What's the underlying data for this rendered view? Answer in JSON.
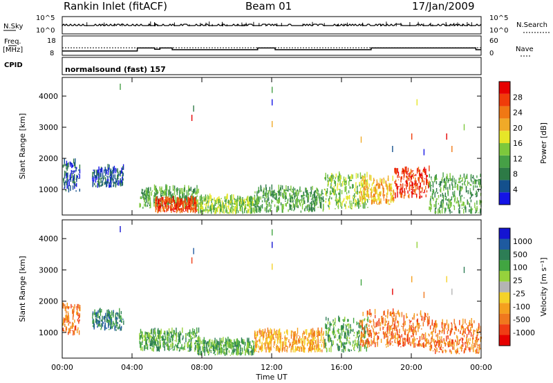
{
  "header": {
    "station": "Rankin Inlet (fitACF)",
    "beam": "Beam 01",
    "date": "17/Jan/2009"
  },
  "panels": {
    "nsky_label": "N.Sky",
    "nsky_ticks": [
      "10^5",
      "10^0"
    ],
    "nsearch_label": "N.Search",
    "nsearch_ticks": [
      "10^5",
      "10^0"
    ],
    "freq_label": "Freq.",
    "freq_unit": "[MHz]",
    "freq_ticks": [
      "18",
      "8"
    ],
    "nave_label": "Nave",
    "nave_ticks": [
      "60",
      "0"
    ],
    "cpid_label": "CPID",
    "cpid_text": "normalsound (fast) 157"
  },
  "colors": {
    "power": [
      "#1414e6",
      "#14508c",
      "#2d7a46",
      "#46a046",
      "#7dc83c",
      "#e6e628",
      "#f0aa28",
      "#f07814",
      "#f03c0a",
      "#e60000"
    ],
    "velocity": [
      "#1414d2",
      "#1e5aa0",
      "#2d7d55",
      "#41a541",
      "#96d23c",
      "#b4b4b4",
      "#f5d228",
      "#f5a01e",
      "#f0781e",
      "#f03c14",
      "#e60000"
    ]
  },
  "chart_data": [
    {
      "type": "line",
      "name": "N.Sky / N.Search",
      "x_range_hours": [
        0,
        24
      ],
      "y_scale": "log",
      "y_ticks": [
        "10^0",
        "10^5"
      ]
    },
    {
      "type": "line",
      "name": "Frequency / Nave",
      "y_range_mhz": [
        8,
        18
      ],
      "nave_range": [
        0,
        60
      ],
      "freq_steps_mhz": [
        {
          "start": 0.0,
          "end": 4.3,
          "value": 10.2
        },
        {
          "start": 4.3,
          "end": 5.3,
          "value": 11.8
        },
        {
          "start": 5.3,
          "end": 5.6,
          "value": 11.1
        },
        {
          "start": 5.6,
          "end": 6.3,
          "value": 11.8
        },
        {
          "start": 6.3,
          "end": 11.2,
          "value": 10.9
        },
        {
          "start": 11.2,
          "end": 12.2,
          "value": 11.8
        },
        {
          "start": 12.2,
          "end": 17.7,
          "value": 10.9
        },
        {
          "start": 17.7,
          "end": 23.7,
          "value": 11.8
        },
        {
          "start": 23.7,
          "end": 24.0,
          "value": 10.9
        }
      ],
      "nave_reference": 11.9
    },
    {
      "type": "heatmap",
      "name": "Power",
      "xlabel": "",
      "ylabel": "Slant Range [km]",
      "ylim": [
        180,
        4600
      ],
      "y_ticks": [
        1000,
        2000,
        3000,
        4000
      ],
      "x_ticks": [
        "00:00",
        "04:00",
        "08:00",
        "12:00",
        "16:00",
        "20:00",
        "00:00"
      ],
      "x_range_hours": [
        0,
        24
      ],
      "colorbar_label": "Power [dB]",
      "colorbar_ticks": [
        4,
        8,
        12,
        16,
        20,
        24,
        28
      ],
      "colorbar_range": [
        0,
        30
      ],
      "regions": [
        {
          "t0": 0.0,
          "t1": 1.0,
          "r0": 900,
          "r1": 1850,
          "c": 1
        },
        {
          "t0": 1.7,
          "t1": 3.5,
          "r0": 1050,
          "r1": 1650,
          "c": 1
        },
        {
          "t0": 4.4,
          "t1": 7.8,
          "r0": 380,
          "r1": 1000,
          "c": 3
        },
        {
          "t0": 5.3,
          "t1": 7.7,
          "r0": 230,
          "r1": 650,
          "c": 8
        },
        {
          "t0": 7.7,
          "t1": 11.0,
          "r0": 200,
          "r1": 700,
          "c": 4
        },
        {
          "t0": 11.0,
          "t1": 15.0,
          "r0": 250,
          "r1": 1000,
          "c": 3
        },
        {
          "t0": 15.0,
          "t1": 17.5,
          "r0": 350,
          "r1": 1400,
          "c": 4
        },
        {
          "t0": 17.0,
          "t1": 19.0,
          "r0": 500,
          "r1": 1300,
          "c": 6
        },
        {
          "t0": 19.0,
          "t1": 21.0,
          "r0": 700,
          "r1": 1600,
          "c": 8
        },
        {
          "t0": 21.0,
          "t1": 24.0,
          "r0": 200,
          "r1": 1400,
          "c": 3
        }
      ]
    },
    {
      "type": "heatmap",
      "name": "Velocity",
      "xlabel": "Time UT",
      "ylabel": "Slant Range [km]",
      "ylim": [
        180,
        4600
      ],
      "y_ticks": [
        1000,
        2000,
        3000,
        4000
      ],
      "x_ticks": [
        "00:00",
        "04:00",
        "08:00",
        "12:00",
        "16:00",
        "20:00",
        "00:00"
      ],
      "x_range_hours": [
        0,
        24
      ],
      "colorbar_label": "Velocity [m s⁻¹]",
      "colorbar_ticks": [
        "1000",
        "500",
        "100",
        "25",
        "-25",
        "-100",
        "-500",
        "-1000"
      ],
      "regions": [
        {
          "t0": 0.0,
          "t1": 1.0,
          "r0": 900,
          "r1": 1850,
          "c": 8
        },
        {
          "t0": 1.7,
          "t1": 3.5,
          "r0": 1050,
          "r1": 1650,
          "c": 2
        },
        {
          "t0": 4.4,
          "t1": 7.8,
          "r0": 380,
          "r1": 1000,
          "c": 3
        },
        {
          "t0": 7.7,
          "t1": 11.0,
          "r0": 250,
          "r1": 700,
          "c": 3
        },
        {
          "t0": 11.0,
          "t1": 15.0,
          "r0": 350,
          "r1": 1000,
          "c": 7
        },
        {
          "t0": 15.0,
          "t1": 17.5,
          "r0": 350,
          "r1": 1400,
          "c": 3
        },
        {
          "t0": 17.0,
          "t1": 21.0,
          "r0": 500,
          "r1": 1600,
          "c": 8
        },
        {
          "t0": 21.0,
          "t1": 24.0,
          "r0": 300,
          "r1": 1300,
          "c": 8
        }
      ]
    }
  ]
}
